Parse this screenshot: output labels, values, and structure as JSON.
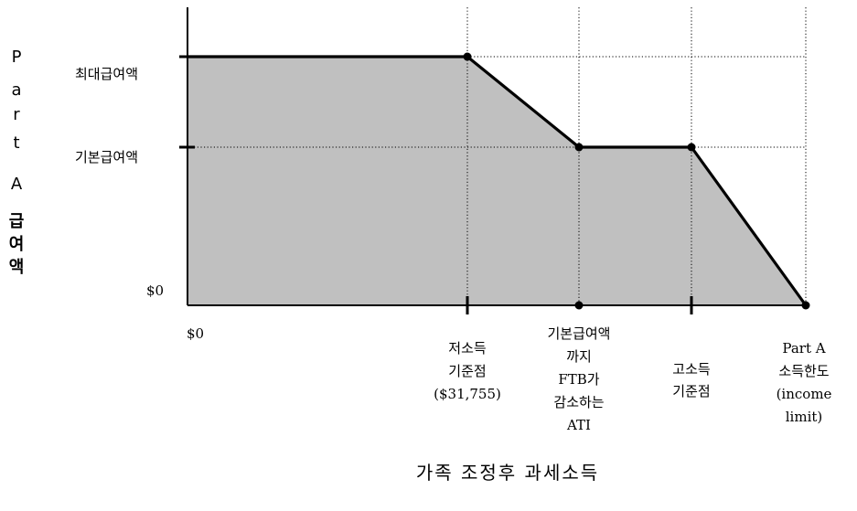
{
  "y_axis_label": {
    "part": [
      "P",
      "a",
      "r",
      "t"
    ],
    "letter": "A",
    "korean": [
      "급",
      "여",
      "액"
    ]
  },
  "y_levels": {
    "max": "최대급여액",
    "base": "기본급여액",
    "zero": "$0"
  },
  "x_labels": {
    "origin": "$0",
    "low_threshold": [
      "저소득",
      "기준점",
      "($31,755)"
    ],
    "ftb_reduce": [
      "기본급여액",
      "까지",
      "FTB가",
      "감소하는",
      "ATI"
    ],
    "high_threshold": [
      "고소득",
      "기준점"
    ],
    "income_limit": [
      "Part A",
      "소득한도",
      "(income",
      "limit)"
    ]
  },
  "x_axis_title": "가족 조정후 과세소득",
  "colors": {
    "fill": "#c0c0c0",
    "line": "#000000",
    "grid": "#000000"
  }
}
